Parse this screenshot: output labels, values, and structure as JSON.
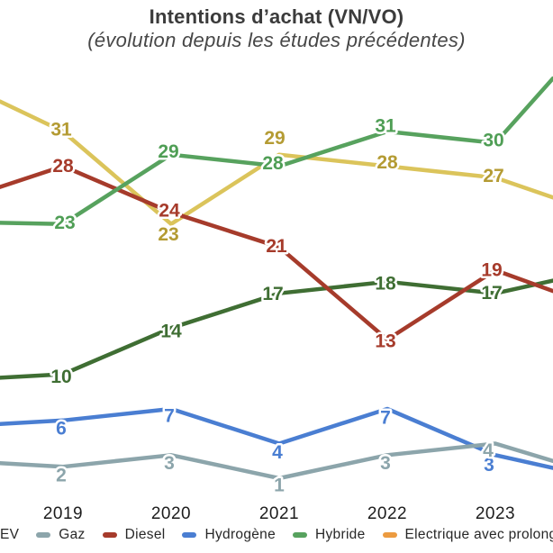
{
  "chart_data": {
    "type": "line",
    "title": "Intentions d’achat (VN/VO)",
    "subtitle": "(évolution depuis les études précédentes)",
    "x": [
      "2019",
      "2020",
      "2021",
      "2022",
      "2023"
    ],
    "grid": false,
    "legend_position": "bottom",
    "ylim_visible": [
      0,
      35
    ],
    "series": [
      {
        "key": "hydrogene",
        "label": "Hydrogène",
        "color": "#4a7ed2",
        "label_color": "#4a7ed2",
        "values": [
          6,
          7,
          4,
          7,
          3
        ],
        "left_edge": 5.7,
        "right_edge": 1.9
      },
      {
        "key": "gaz",
        "label": "Gaz",
        "color": "#8ca5ab",
        "label_color": "#8ca5ab",
        "values": [
          2,
          3,
          1,
          3,
          4
        ],
        "left_edge": 2.3,
        "right_edge": 2.5
      },
      {
        "key": "yellow",
        "label": "",
        "color": "#dbc45b",
        "label_color": "#b49b33",
        "values": [
          31,
          23,
          29,
          28,
          27
        ],
        "left_edge": 33.6,
        "right_edge": 25.3
      },
      {
        "key": "ev",
        "label": "EV",
        "color": "#3f6e33",
        "label_color": "#3f6e33",
        "values": [
          10,
          14,
          17,
          18,
          17
        ],
        "left_edge": 9.7,
        "right_edge": 18.1
      },
      {
        "key": "diesel",
        "label": "Diesel",
        "color": "#a63b2b",
        "label_color": "#a63b2b",
        "values": [
          28,
          24,
          21,
          13,
          19
        ],
        "left_edge": 26.2,
        "right_edge": 17.2
      },
      {
        "key": "hybride",
        "label": "Hybride",
        "color": "#57a25e",
        "label_color": "#4f9e55",
        "values": [
          23,
          29,
          28,
          31,
          30
        ],
        "left_edge": 23.1,
        "right_edge": 35.6
      }
    ],
    "legend": [
      {
        "key": "ev",
        "label": "EV",
        "color": "#3f6e33"
      },
      {
        "key": "gaz",
        "label": "Gaz",
        "color": "#8ca5ab"
      },
      {
        "key": "diesel",
        "label": "Diesel",
        "color": "#a63b2b"
      },
      {
        "key": "hydrogene",
        "label": "Hydrogène",
        "color": "#4a7ed2"
      },
      {
        "key": "hybride",
        "label": "Hybride",
        "color": "#57a25e"
      },
      {
        "key": "electrique-avec-prolong",
        "label": "Electrique avec prolong",
        "color": "#ec9b40"
      }
    ]
  }
}
